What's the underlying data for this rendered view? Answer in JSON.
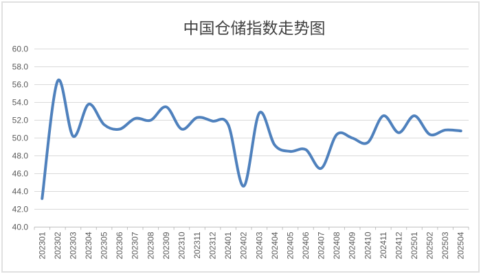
{
  "chart_data": {
    "type": "line",
    "title": "中国仓储指数走势图",
    "categories": [
      "202301",
      "202302",
      "202303",
      "202304",
      "202305",
      "202306",
      "202307",
      "202308",
      "202309",
      "202310",
      "202311",
      "202312",
      "202401",
      "202402",
      "202403",
      "202404",
      "202405",
      "202406",
      "202407",
      "202408",
      "202409",
      "202410",
      "202411",
      "202412",
      "202501",
      "202502",
      "202503",
      "202504"
    ],
    "values": [
      43.2,
      56.4,
      50.2,
      53.8,
      51.5,
      51.0,
      52.2,
      52.0,
      53.5,
      51.0,
      52.3,
      51.9,
      51.5,
      44.6,
      52.8,
      49.2,
      48.5,
      48.7,
      46.6,
      50.4,
      50.0,
      49.5,
      52.5,
      50.6,
      52.5,
      50.4,
      50.9,
      50.8
    ],
    "xlabel": "",
    "ylabel": "",
    "ylim": [
      40.0,
      60.0
    ],
    "ytick_step": 2.0,
    "ytick_decimals": 1,
    "grid": true,
    "legend": "none",
    "line_smoothing": true,
    "colors": {
      "line": "#4F81BD",
      "gridline": "#D9D9D9",
      "axis": "#BFBFBF",
      "tick_label": "#595959",
      "title": "#404040",
      "background": "#FFFFFF",
      "frame_border": "#E0E0E0"
    }
  }
}
